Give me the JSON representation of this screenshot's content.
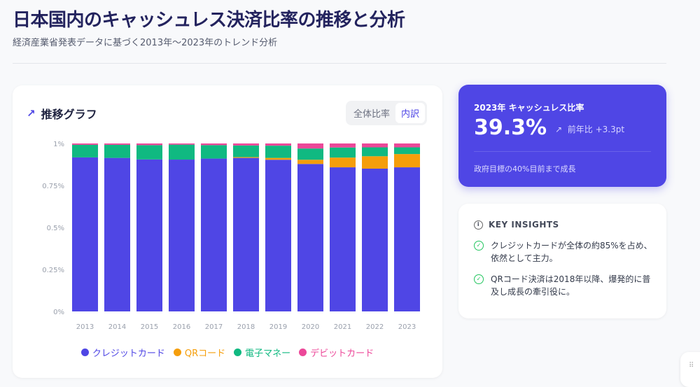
{
  "header": {
    "title": "日本国内のキャッシュレス決済比率の推移と分析",
    "subtitle": "経済産業省発表データに基づく2013年〜2023年のトレンド分析"
  },
  "chart_card": {
    "title": "推移グラフ",
    "icon": "trending-up-icon",
    "toggle": [
      "全体比率",
      "内訳"
    ],
    "active_toggle": "内訳"
  },
  "chart_data": {
    "type": "bar",
    "stacked": true,
    "categories": [
      "2013",
      "2014",
      "2015",
      "2016",
      "2017",
      "2018",
      "2019",
      "2020",
      "2021",
      "2022",
      "2023"
    ],
    "ylim": [
      0,
      1
    ],
    "yticks": [
      "0%",
      "0.25%",
      "0.5%",
      "0.75%",
      "1%"
    ],
    "grid": false,
    "legend": "bottom",
    "series": [
      {
        "name": "クレジットカード",
        "color": "#4f46e5",
        "values": [
          0.917,
          0.914,
          0.905,
          0.904,
          0.91,
          0.914,
          0.903,
          0.878,
          0.858,
          0.85,
          0.858
        ]
      },
      {
        "name": "QRコード",
        "color": "#f59e0b",
        "values": [
          0,
          0,
          0,
          0,
          0,
          0.005,
          0.011,
          0.025,
          0.058,
          0.074,
          0.079
        ]
      },
      {
        "name": "電子マネー",
        "color": "#10b981",
        "values": [
          0.075,
          0.078,
          0.085,
          0.089,
          0.08,
          0.069,
          0.073,
          0.067,
          0.06,
          0.053,
          0.04
        ]
      },
      {
        "name": "デビットカード",
        "color": "#ec4899",
        "values": [
          0.008,
          0.008,
          0.01,
          0.007,
          0.01,
          0.012,
          0.013,
          0.03,
          0.024,
          0.023,
          0.023
        ]
      }
    ]
  },
  "kpi": {
    "label": "2023年 キャッシュレス比率",
    "value": "39.3%",
    "delta_icon": "arrow-up-right-icon",
    "delta": "前年比 +3.3pt",
    "note": "政府目標の40%目前まで成長"
  },
  "insights": {
    "title": "KEY INSIGHTS",
    "items": [
      "クレジットカードが全体の約85%を占め、依然として主力。",
      "QRコード決済は2018年以降、爆発的に普及し成長の牽引役に。"
    ]
  }
}
